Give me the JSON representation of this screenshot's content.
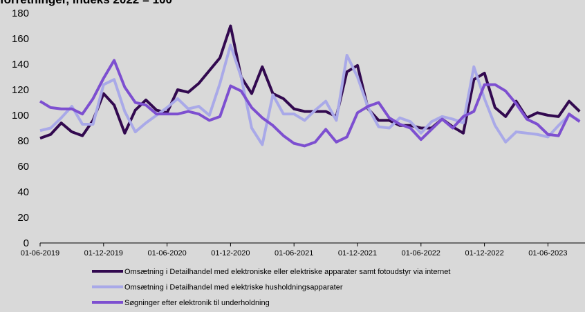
{
  "chart_data": {
    "type": "line",
    "title": "forretninger, indeks 2022 = 100",
    "categories": [
      "01-06-2019",
      null,
      null,
      null,
      null,
      null,
      "01-12-2019",
      null,
      null,
      null,
      null,
      null,
      "01-06-2020",
      null,
      null,
      null,
      null,
      null,
      "01-12-2020",
      null,
      null,
      null,
      null,
      null,
      "01-06-2021",
      null,
      null,
      null,
      null,
      null,
      "01-12-2021",
      null,
      null,
      null,
      null,
      null,
      "01-06-2022",
      null,
      null,
      null,
      null,
      null,
      "01-12-2022",
      null,
      null,
      null,
      null,
      null,
      "01-06-2023",
      null,
      null,
      null
    ],
    "series": [
      {
        "name": "Omsætning i Detailhandel med elektroniske eller elektriske apparater samt fotoudstyr via internet",
        "color": "#32094f",
        "values": [
          82,
          85,
          94,
          87,
          84,
          96,
          117,
          108,
          86,
          104,
          112,
          104,
          102,
          120,
          118,
          125,
          135,
          145,
          170,
          130,
          117,
          138,
          117,
          113,
          105,
          103,
          103,
          103,
          99,
          134,
          139,
          105,
          96,
          96,
          92,
          92,
          90,
          90,
          97,
          91,
          86,
          128,
          133,
          106,
          99,
          111,
          98,
          102,
          100,
          99,
          111,
          103
        ]
      },
      {
        "name": "Omsætning i Detailhandel med elektriske husholdningsapparater",
        "color": "#a9a9e8",
        "values": [
          88,
          90,
          98,
          107,
          93,
          93,
          124,
          128,
          103,
          87,
          94,
          100,
          106,
          113,
          105,
          107,
          100,
          125,
          155,
          130,
          90,
          77,
          116,
          101,
          101,
          96,
          104,
          111,
          96,
          147,
          130,
          106,
          91,
          90,
          98,
          95,
          86,
          95,
          99,
          97,
          94,
          138,
          113,
          92,
          79,
          87,
          86,
          85,
          83,
          92,
          100,
          96
        ]
      },
      {
        "name": "Søgninger efter elektronik til underholdning",
        "color": "#7d4fd0",
        "values": [
          111,
          106,
          105,
          105,
          101,
          113,
          129,
          143,
          122,
          110,
          108,
          101,
          101,
          101,
          103,
          101,
          96,
          99,
          123,
          119,
          106,
          98,
          92,
          84,
          78,
          76,
          79,
          89,
          79,
          83,
          102,
          107,
          110,
          98,
          93,
          90,
          81,
          89,
          97,
          90,
          99,
          103,
          124,
          124,
          119,
          109,
          97,
          93,
          85,
          84,
          101,
          95
        ]
      }
    ],
    "ylim": [
      0,
      180
    ],
    "yticks": [
      0,
      20,
      40,
      60,
      80,
      100,
      120,
      140,
      160,
      180
    ]
  }
}
